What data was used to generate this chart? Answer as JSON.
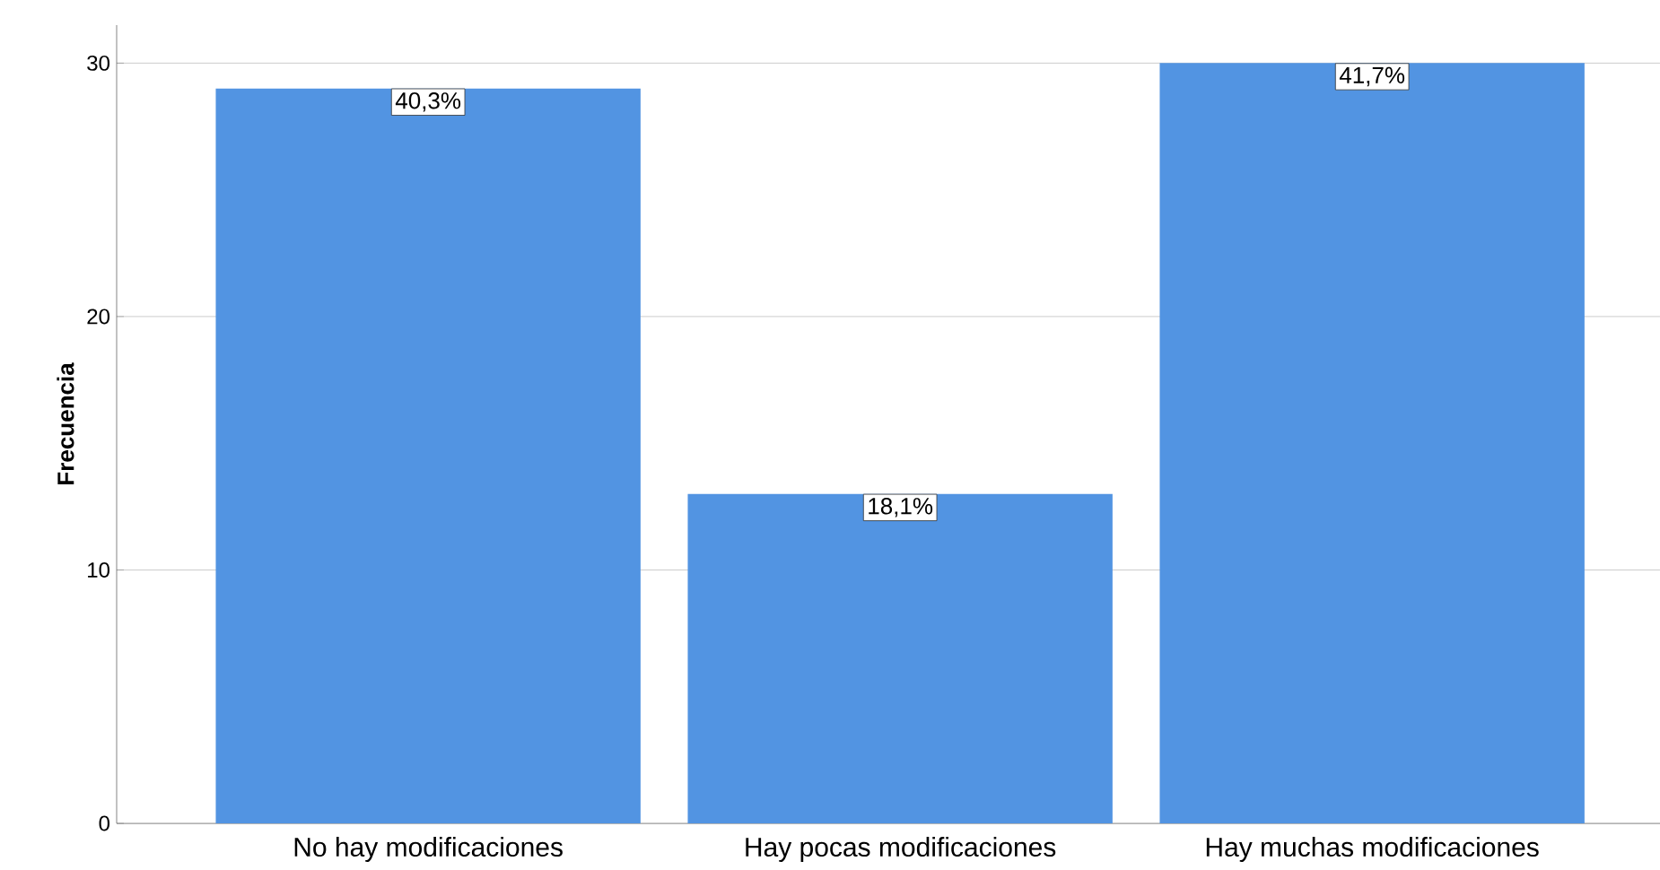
{
  "chart_data": {
    "type": "bar",
    "ylabel": "Frecuencia",
    "categories": [
      "No hay modificaciones",
      "Hay pocas modificaciones",
      "Hay muchas modificaciones"
    ],
    "values": [
      29,
      13,
      30
    ],
    "color": "#5294e2",
    "annotations": [
      {
        "text": "40,3%",
        "x": "No hay modificaciones",
        "y": 29
      },
      {
        "text": "18,1%",
        "x": "Hay pocas modificaciones",
        "y": 13
      },
      {
        "text": "41,7%",
        "x": "Hay muchas modificaciones",
        "y": 30
      }
    ],
    "ylim": [
      0,
      31.5
    ],
    "yticks": [
      0,
      10,
      20,
      30
    ],
    "grid": "y"
  }
}
